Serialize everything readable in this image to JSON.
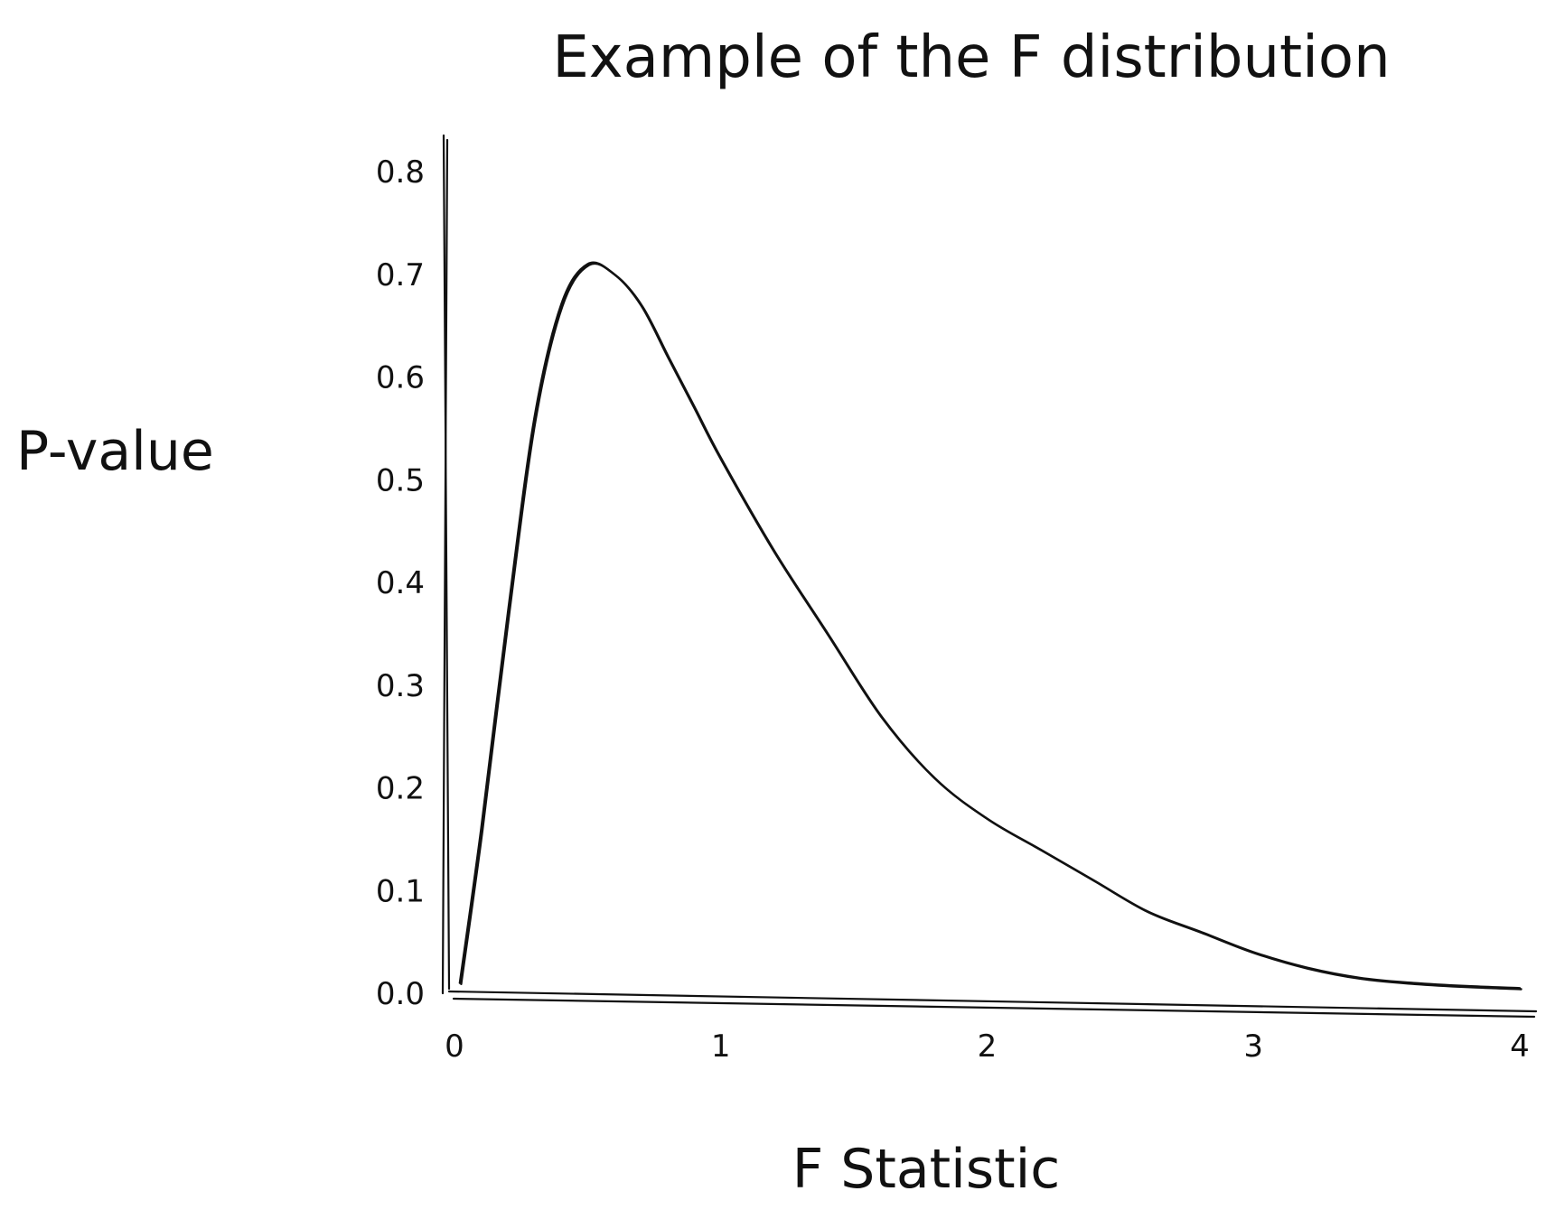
{
  "chart_data": {
    "type": "line",
    "title": "Example of the F distribution",
    "xlabel": "F Statistic",
    "ylabel": "P-value",
    "xlim": [
      0,
      4
    ],
    "ylim": [
      0,
      0.8
    ],
    "x_ticks": [
      {
        "value": 0,
        "label": "0"
      },
      {
        "value": 1,
        "label": "1"
      },
      {
        "value": 2,
        "label": "2"
      },
      {
        "value": 3,
        "label": "3"
      },
      {
        "value": 4,
        "label": "4"
      }
    ],
    "y_ticks": [
      {
        "value": 0.0,
        "label": "0.0"
      },
      {
        "value": 0.1,
        "label": "0.1"
      },
      {
        "value": 0.2,
        "label": "0.2"
      },
      {
        "value": 0.3,
        "label": "0.3"
      },
      {
        "value": 0.4,
        "label": "0.4"
      },
      {
        "value": 0.5,
        "label": "0.5"
      },
      {
        "value": 0.6,
        "label": "0.6"
      },
      {
        "value": 0.7,
        "label": "0.7"
      },
      {
        "value": 0.8,
        "label": "0.8"
      }
    ],
    "grid": false,
    "legend": "none",
    "series": [
      {
        "color": "#111111",
        "x": [
          0.02,
          0.1,
          0.2,
          0.3,
          0.4,
          0.5,
          0.6,
          0.7,
          0.8,
          0.9,
          1.0,
          1.2,
          1.4,
          1.6,
          1.8,
          2.0,
          2.2,
          2.4,
          2.6,
          2.8,
          3.0,
          3.2,
          3.4,
          3.6,
          3.8,
          4.0
        ],
        "y": [
          0.01,
          0.16,
          0.37,
          0.56,
          0.67,
          0.71,
          0.7,
          0.67,
          0.62,
          0.57,
          0.52,
          0.43,
          0.35,
          0.27,
          0.21,
          0.17,
          0.14,
          0.11,
          0.08,
          0.06,
          0.04,
          0.025,
          0.015,
          0.01,
          0.007,
          0.005
        ]
      }
    ]
  }
}
